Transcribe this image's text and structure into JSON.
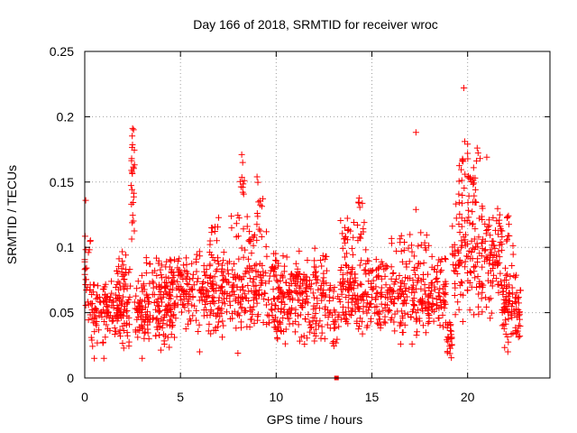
{
  "chart_data": {
    "type": "scatter",
    "title": "Day 166 of 2018, SRMTID for receiver wroc",
    "xlabel": "GPS time / hours",
    "ylabel": "SRMTID / TECUs",
    "xlim": [
      0,
      24.3
    ],
    "ylim": [
      0,
      0.25
    ],
    "grid": true,
    "marker": "+",
    "marker_color": "#ff0000",
    "xticks": [
      0,
      5,
      10,
      15,
      20
    ],
    "xtick_labels": [
      "0",
      "5",
      "10",
      "15",
      "20"
    ],
    "yticks": [
      0,
      0.05,
      0.1,
      0.15,
      0.2,
      0.25
    ],
    "ytick_labels": [
      "0",
      "0.05",
      "0.1",
      "0.15",
      "0.2",
      "0.25"
    ],
    "zero_marker": {
      "x": 13.15,
      "y": 0
    },
    "bands": [
      {
        "x0": 0.0,
        "x1": 0.3,
        "lo": 0.04,
        "hi": 0.12,
        "n": 25
      },
      {
        "x0": 0.3,
        "x1": 2.4,
        "lo": 0.02,
        "hi": 0.08,
        "n": 150
      },
      {
        "x0": 1.6,
        "x1": 2.4,
        "lo": 0.06,
        "hi": 0.1,
        "n": 30
      },
      {
        "x0": 2.4,
        "x1": 2.6,
        "lo": 0.1,
        "hi": 0.19,
        "n": 22
      },
      {
        "x0": 2.6,
        "x1": 4.6,
        "lo": 0.02,
        "hi": 0.08,
        "n": 150
      },
      {
        "x0": 3.2,
        "x1": 4.6,
        "lo": 0.06,
        "hi": 0.095,
        "n": 40
      },
      {
        "x0": 4.6,
        "x1": 6.8,
        "lo": 0.03,
        "hi": 0.1,
        "n": 160
      },
      {
        "x0": 6.5,
        "x1": 7.0,
        "lo": 0.08,
        "hi": 0.13,
        "n": 15
      },
      {
        "x0": 6.8,
        "x1": 9.4,
        "lo": 0.03,
        "hi": 0.1,
        "n": 180
      },
      {
        "x0": 7.5,
        "x1": 9.5,
        "lo": 0.09,
        "hi": 0.13,
        "n": 30
      },
      {
        "x0": 8.1,
        "x1": 8.4,
        "lo": 0.13,
        "hi": 0.17,
        "n": 8
      },
      {
        "x0": 9.0,
        "x1": 9.4,
        "lo": 0.12,
        "hi": 0.155,
        "n": 6
      },
      {
        "x0": 9.4,
        "x1": 12.8,
        "lo": 0.03,
        "hi": 0.1,
        "n": 240
      },
      {
        "x0": 9.9,
        "x1": 12.8,
        "lo": 0.02,
        "hi": 0.05,
        "n": 30
      },
      {
        "x0": 12.8,
        "x1": 13.3,
        "lo": 0.02,
        "hi": 0.08,
        "n": 25
      },
      {
        "x0": 13.3,
        "x1": 16.0,
        "lo": 0.03,
        "hi": 0.1,
        "n": 200
      },
      {
        "x0": 13.3,
        "x1": 14.6,
        "lo": 0.09,
        "hi": 0.13,
        "n": 25
      },
      {
        "x0": 14.3,
        "x1": 14.5,
        "lo": 0.12,
        "hi": 0.145,
        "n": 5
      },
      {
        "x0": 16.0,
        "x1": 18.9,
        "lo": 0.03,
        "hi": 0.1,
        "n": 210
      },
      {
        "x0": 16.0,
        "x1": 18.0,
        "lo": 0.09,
        "hi": 0.115,
        "n": 20
      },
      {
        "x0": 18.9,
        "x1": 19.2,
        "lo": 0.01,
        "hi": 0.05,
        "n": 25
      },
      {
        "x0": 19.2,
        "x1": 21.8,
        "lo": 0.04,
        "hi": 0.14,
        "n": 200
      },
      {
        "x0": 19.5,
        "x1": 20.6,
        "lo": 0.11,
        "hi": 0.18,
        "n": 40
      },
      {
        "x0": 21.8,
        "x1": 22.8,
        "lo": 0.02,
        "hi": 0.09,
        "n": 90
      },
      {
        "x0": 22.0,
        "x1": 22.4,
        "lo": 0.09,
        "hi": 0.13,
        "n": 10
      }
    ],
    "outliers": [
      [
        0.05,
        0.136
      ],
      [
        2.5,
        0.191
      ],
      [
        2.55,
        0.19
      ],
      [
        2.45,
        0.168
      ],
      [
        8.2,
        0.171
      ],
      [
        8.25,
        0.165
      ],
      [
        17.3,
        0.188
      ],
      [
        17.3,
        0.129
      ],
      [
        19.8,
        0.222
      ],
      [
        19.85,
        0.181
      ],
      [
        20.0,
        0.179
      ],
      [
        20.5,
        0.176
      ],
      [
        20.65,
        0.168
      ],
      [
        21.0,
        0.169
      ],
      [
        9.0,
        0.154
      ],
      [
        0.5,
        0.015
      ],
      [
        1.0,
        0.015
      ],
      [
        3.0,
        0.015
      ],
      [
        6.0,
        0.02
      ],
      [
        8.0,
        0.019
      ],
      [
        13.0,
        0.028
      ],
      [
        16.5,
        0.026
      ],
      [
        17.1,
        0.026
      ],
      [
        22.1,
        0.02
      ]
    ]
  }
}
